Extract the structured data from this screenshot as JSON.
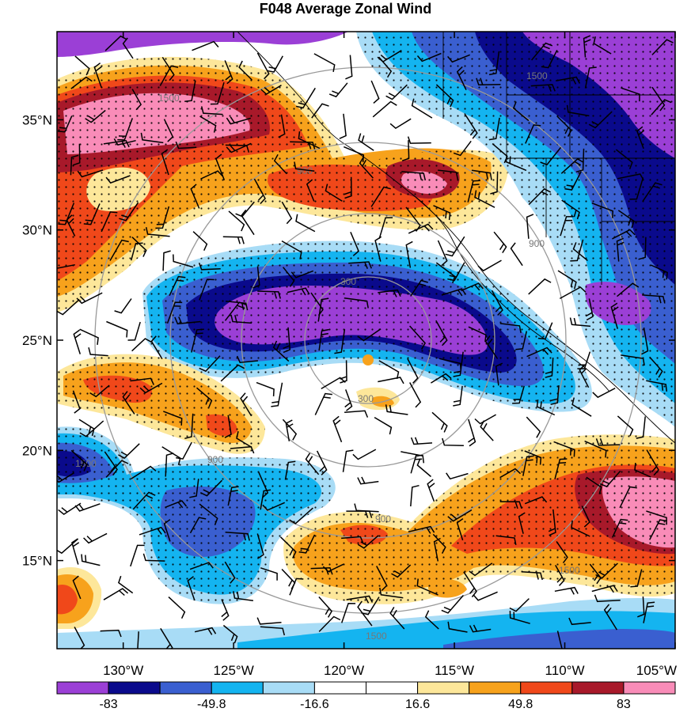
{
  "title": "F048 Average Zonal Wind",
  "map": {
    "lon_range": [
      -133,
      -105
    ],
    "lat_range": [
      11,
      39
    ],
    "lat_ticks": [
      {
        "value": 35,
        "label": "35°N"
      },
      {
        "value": 30,
        "label": "30°N"
      },
      {
        "value": 25,
        "label": "25°N"
      },
      {
        "value": 20,
        "label": "20°N"
      },
      {
        "value": 15,
        "label": "15°N"
      }
    ],
    "lon_ticks": [
      {
        "value": -130,
        "label": "130°W"
      },
      {
        "value": -125,
        "label": "125°W"
      },
      {
        "value": -120,
        "label": "120°W"
      },
      {
        "value": -115,
        "label": "115°W"
      },
      {
        "value": -110,
        "label": "110°W"
      },
      {
        "value": -105,
        "label": "105°W"
      }
    ],
    "range_ring_labels": [
      "300",
      "300",
      "900",
      "900",
      "900",
      "900",
      "1500",
      "1500",
      "1500",
      "1500",
      "1500"
    ],
    "fill_colors": [
      "#9b3fd6",
      "#0a0a8c",
      "#3a5fd0",
      "#14b4f0",
      "#a8dcf6",
      "#ffffff",
      "#fde79a",
      "#f7a21c",
      "#f0481a",
      "#a8192a",
      "#f98cb8"
    ]
  },
  "colorbar": {
    "colors": [
      "#9b3fd6",
      "#0a0a8c",
      "#3a5fd0",
      "#14b4f0",
      "#a8dcf6",
      "#ffffff",
      "#ffffff",
      "#fde79a",
      "#f7a21c",
      "#f0481a",
      "#a8192a",
      "#f98cb8"
    ],
    "labels": [
      "-83",
      "-49.8",
      "-16.6",
      "16.6",
      "49.8",
      "83"
    ]
  }
}
